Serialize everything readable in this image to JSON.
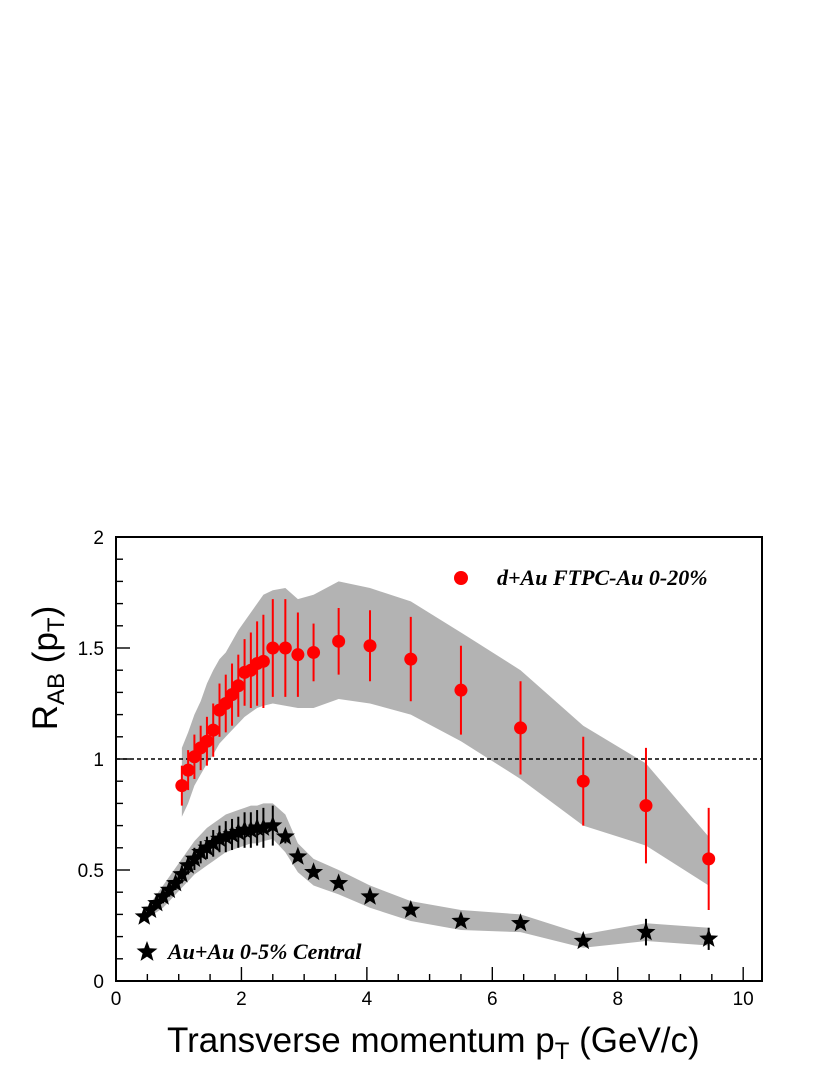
{
  "chart_data": {
    "type": "scatter",
    "title": "",
    "xlabel": {
      "main": "Transverse momentum p",
      "sub": "T",
      "suffix": " (GeV/c)"
    },
    "ylabel": {
      "main": "R",
      "sub": "AB",
      "mid": " (p",
      "sub2": "T",
      "suffix": ")"
    },
    "xlim": [
      0,
      10.3
    ],
    "ylim": [
      0,
      2
    ],
    "xticks": [
      0,
      2,
      4,
      6,
      8,
      10
    ],
    "xtick_labels": [
      "0",
      "2",
      "4",
      "6",
      "8",
      "10"
    ],
    "yticks": [
      0,
      0.5,
      1,
      1.5,
      2
    ],
    "ytick_labels": [
      "0",
      "0.5",
      "1",
      "1.5",
      "2"
    ],
    "reference_line": 1,
    "grid": false,
    "legend_placement": "top-right / bottom-left",
    "series": [
      {
        "name": "d+Au FTPC-Au 0-20%",
        "marker": "circle",
        "color": "#ff0000",
        "band_color": "#b3b3b3",
        "x": [
          1.05,
          1.15,
          1.25,
          1.35,
          1.45,
          1.55,
          1.65,
          1.75,
          1.85,
          1.95,
          2.05,
          2.15,
          2.25,
          2.35,
          2.5,
          2.7,
          2.9,
          3.15,
          3.55,
          4.05,
          4.7,
          5.5,
          6.45,
          7.45,
          8.45,
          9.45
        ],
        "y": [
          0.88,
          0.95,
          1.01,
          1.05,
          1.08,
          1.13,
          1.22,
          1.25,
          1.29,
          1.33,
          1.39,
          1.4,
          1.43,
          1.44,
          1.5,
          1.5,
          1.47,
          1.48,
          1.53,
          1.51,
          1.45,
          1.31,
          1.14,
          0.9,
          0.79,
          0.55
        ],
        "yerr": [
          0.09,
          0.09,
          0.1,
          0.1,
          0.11,
          0.12,
          0.12,
          0.13,
          0.14,
          0.14,
          0.15,
          0.17,
          0.19,
          0.21,
          0.22,
          0.22,
          0.19,
          0.13,
          0.15,
          0.16,
          0.19,
          0.2,
          0.21,
          0.2,
          0.26,
          0.23
        ],
        "band_upper": [
          1.05,
          1.12,
          1.2,
          1.26,
          1.34,
          1.4,
          1.45,
          1.48,
          1.53,
          1.58,
          1.62,
          1.66,
          1.7,
          1.74,
          1.76,
          1.77,
          1.72,
          1.74,
          1.8,
          1.77,
          1.71,
          1.57,
          1.4,
          1.15,
          0.98,
          0.65
        ],
        "band_lower": [
          0.74,
          0.8,
          0.88,
          0.93,
          0.98,
          1.02,
          1.07,
          1.1,
          1.13,
          1.16,
          1.19,
          1.21,
          1.23,
          1.24,
          1.25,
          1.24,
          1.23,
          1.23,
          1.27,
          1.25,
          1.2,
          1.08,
          0.91,
          0.7,
          0.61,
          0.43
        ]
      },
      {
        "name": "Au+Au 0-5% Central",
        "marker": "star",
        "color": "#000000",
        "band_color": "#b3b3b3",
        "x": [
          0.45,
          0.55,
          0.65,
          0.75,
          0.85,
          0.95,
          1.05,
          1.15,
          1.25,
          1.35,
          1.45,
          1.55,
          1.65,
          1.75,
          1.85,
          1.95,
          2.05,
          2.15,
          2.25,
          2.35,
          2.5,
          2.7,
          2.9,
          3.15,
          3.55,
          4.05,
          4.7,
          5.5,
          6.45,
          7.45,
          8.45,
          9.45
        ],
        "y": [
          0.29,
          0.32,
          0.35,
          0.38,
          0.41,
          0.44,
          0.48,
          0.52,
          0.55,
          0.58,
          0.6,
          0.62,
          0.64,
          0.65,
          0.66,
          0.67,
          0.68,
          0.68,
          0.69,
          0.69,
          0.7,
          0.65,
          0.56,
          0.49,
          0.44,
          0.38,
          0.32,
          0.27,
          0.26,
          0.18,
          0.22,
          0.19
        ],
        "yerr": [
          0.01,
          0.02,
          0.02,
          0.03,
          0.03,
          0.03,
          0.04,
          0.04,
          0.05,
          0.05,
          0.05,
          0.06,
          0.06,
          0.07,
          0.07,
          0.07,
          0.08,
          0.08,
          0.08,
          0.09,
          0.09,
          0.03,
          0.02,
          0.02,
          0.02,
          0.02,
          0.02,
          0.02,
          0.02,
          0.02,
          0.06,
          0.05
        ],
        "band_upper": [
          0.31,
          0.35,
          0.39,
          0.43,
          0.47,
          0.51,
          0.55,
          0.59,
          0.63,
          0.66,
          0.69,
          0.71,
          0.73,
          0.75,
          0.76,
          0.77,
          0.78,
          0.79,
          0.79,
          0.8,
          0.8,
          0.75,
          0.62,
          0.55,
          0.5,
          0.43,
          0.36,
          0.32,
          0.3,
          0.21,
          0.26,
          0.24
        ],
        "band_lower": [
          0.27,
          0.29,
          0.31,
          0.33,
          0.36,
          0.39,
          0.42,
          0.45,
          0.48,
          0.5,
          0.52,
          0.54,
          0.56,
          0.58,
          0.59,
          0.6,
          0.61,
          0.62,
          0.62,
          0.63,
          0.64,
          0.58,
          0.49,
          0.43,
          0.39,
          0.33,
          0.27,
          0.23,
          0.22,
          0.15,
          0.18,
          0.16
        ]
      }
    ]
  }
}
